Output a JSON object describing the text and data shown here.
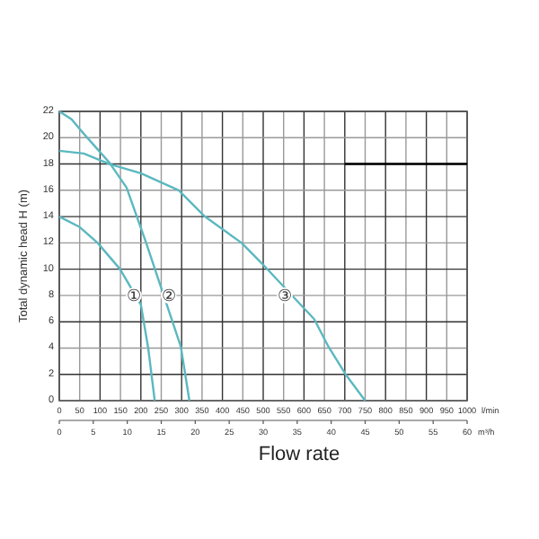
{
  "chart_data": {
    "type": "line",
    "xlabel": "Flow rate",
    "ylabel": "Total dynamic head  H (m)",
    "x2label": "m³/h",
    "series": [
      {
        "color": "#5bb8c0",
        "x": [
          0,
          50,
          94,
          149,
          200,
          218,
          234
        ],
        "values": [
          14,
          13.2,
          12,
          10,
          7.3,
          4,
          0
        ]
      },
      {
        "color": "#5bb8c0",
        "x": [
          0,
          30,
          60,
          123,
          165,
          213,
          298,
          319
        ],
        "values": [
          22,
          21.4,
          20.3,
          18.1,
          16.2,
          12,
          4.1,
          0
        ]
      },
      {
        "color": "#5bb8c0",
        "x": [
          0,
          60,
          123,
          200,
          293,
          357,
          447,
          498,
          625,
          660,
          702,
          750
        ],
        "values": [
          19,
          18.8,
          18,
          17.3,
          16,
          14,
          12,
          10.4,
          6.2,
          4.1,
          2,
          0
        ]
      },
      {
        "color": "#000000",
        "x": [
          700,
          1000
        ],
        "values": [
          18,
          18
        ]
      }
    ],
    "xlim": [
      0,
      1000
    ],
    "xticks": [
      0,
      50,
      100,
      150,
      200,
      250,
      300,
      350,
      400,
      450,
      500,
      550,
      600,
      650,
      700,
      750,
      800,
      850,
      900,
      950,
      1000
    ],
    "x2lim": [
      0,
      60
    ],
    "x2ticks": [
      0,
      5,
      10,
      15,
      20,
      25,
      30,
      35,
      40,
      45,
      50,
      55,
      60
    ],
    "ylim": [
      0,
      22
    ],
    "yticks": [
      0,
      2,
      4,
      6,
      8,
      10,
      12,
      14,
      16,
      18,
      20,
      22
    ],
    "grid": true,
    "marker": "none",
    "line_style": "solid",
    "annotations": [
      {
        "text": "①",
        "x": 183,
        "y": 8
      },
      {
        "text": "②",
        "x": 268,
        "y": 8
      },
      {
        "text": "③",
        "x": 553,
        "y": 8
      },
      "l/min"
    ]
  }
}
